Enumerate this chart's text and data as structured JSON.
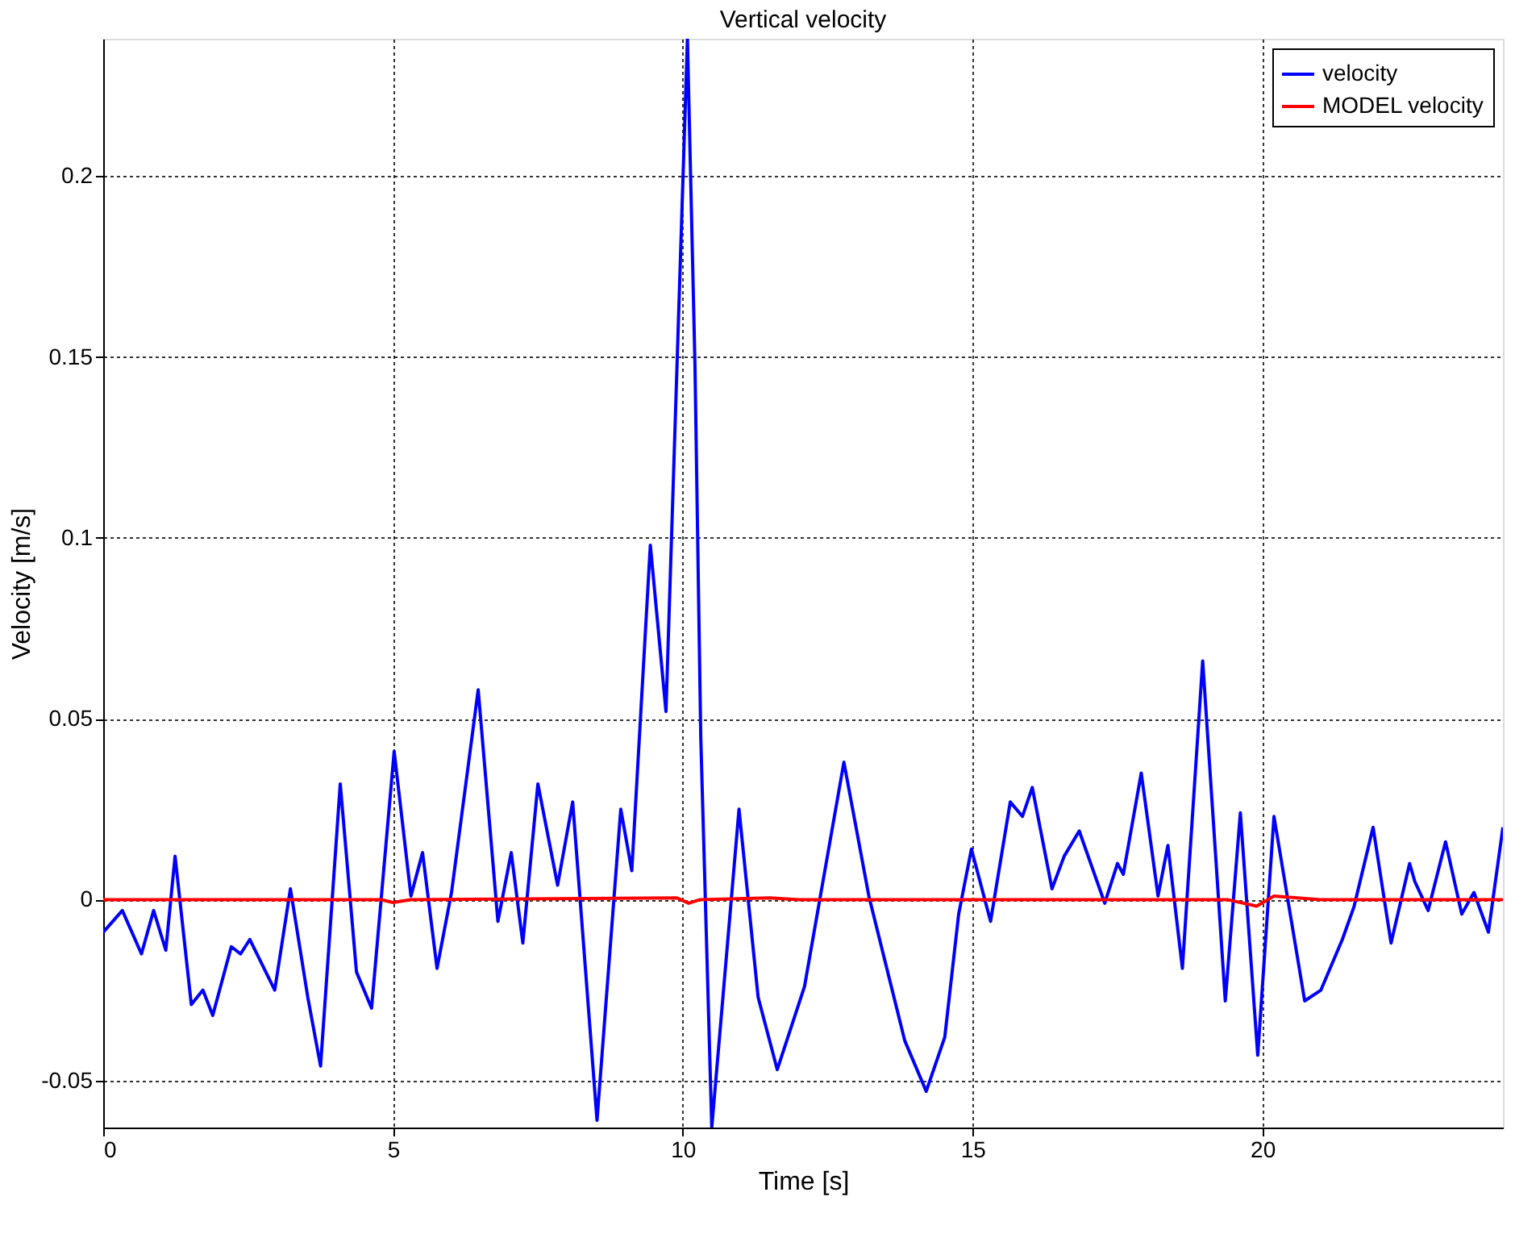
{
  "chart_data": {
    "type": "line",
    "title": "Vertical velocity",
    "xlabel": "Time [s]",
    "ylabel": "Velocity [m/s]",
    "xlim": [
      0,
      24.15
    ],
    "ylim": [
      -0.063,
      0.238
    ],
    "xticks": [
      0,
      5,
      10,
      15,
      20
    ],
    "yticks": [
      -0.05,
      0,
      0.05,
      0.1,
      0.15,
      0.2
    ],
    "grid": true,
    "legend": "top right",
    "line_style": "solid",
    "marker": "none",
    "series": [
      {
        "name": "velocity",
        "color": "#0000ff",
        "x": [
          0,
          0.33,
          0.66,
          0.87,
          1.08,
          1.24,
          1.52,
          1.72,
          1.89,
          2.21,
          2.37,
          2.53,
          2.96,
          3.23,
          3.53,
          3.75,
          4.09,
          4.37,
          4.63,
          5.02,
          5.31,
          5.51,
          5.76,
          6.01,
          6.47,
          6.81,
          7.04,
          7.24,
          7.5,
          7.84,
          8.1,
          8.52,
          8.93,
          9.12,
          9.44,
          9.71,
          10.08,
          10.21,
          10.31,
          10.5,
          10.97,
          11.3,
          11.63,
          12.1,
          12.78,
          13.21,
          13.83,
          14.2,
          14.52,
          14.76,
          14.98,
          15.31,
          15.65,
          15.86,
          16.03,
          16.37,
          16.58,
          16.84,
          17.28,
          17.5,
          17.6,
          17.91,
          18.2,
          18.37,
          18.62,
          18.97,
          19.36,
          19.62,
          19.92,
          20.2,
          20.73,
          21.01,
          21.38,
          21.58,
          21.91,
          22.22,
          22.54,
          22.63,
          22.86,
          23.16,
          23.44,
          23.65,
          23.9,
          24.15
        ],
        "values": [
          -0.009,
          -0.003,
          -0.015,
          -0.003,
          -0.014,
          0.012,
          -0.029,
          -0.025,
          -0.032,
          -0.013,
          -0.015,
          -0.011,
          -0.025,
          0.003,
          -0.027,
          -0.046,
          0.032,
          -0.02,
          -0.03,
          0.041,
          0.001,
          0.013,
          -0.019,
          0.002,
          0.058,
          -0.006,
          0.013,
          -0.012,
          0.032,
          0.004,
          0.027,
          -0.061,
          0.025,
          0.008,
          0.098,
          0.052,
          0.238,
          0.148,
          0.045,
          -0.063,
          0.025,
          -0.027,
          -0.047,
          -0.024,
          0.038,
          0.001,
          -0.039,
          -0.053,
          -0.038,
          -0.004,
          0.014,
          -0.006,
          0.027,
          0.023,
          0.031,
          0.003,
          0.012,
          0.019,
          -0.001,
          0.01,
          0.007,
          0.035,
          0.001,
          0.015,
          -0.019,
          0.066,
          -0.028,
          0.024,
          -0.043,
          0.023,
          -0.028,
          -0.025,
          -0.011,
          -0.002,
          0.02,
          -0.012,
          0.01,
          0.005,
          -0.003,
          0.016,
          -0.004,
          0.002,
          -0.009,
          0.02
        ]
      },
      {
        "name": "MODEL velocity",
        "color": "#ff0000",
        "x": [
          0,
          4.8,
          5.0,
          5.3,
          9.9,
          10.1,
          10.3,
          11.5,
          12,
          19.4,
          19.9,
          20.2,
          20.6,
          21,
          24.15
        ],
        "values": [
          0,
          0,
          -0.0008,
          0,
          0.0005,
          -0.001,
          0,
          0.0005,
          0,
          0,
          -0.0018,
          0.001,
          0.0005,
          0,
          0
        ]
      }
    ]
  }
}
